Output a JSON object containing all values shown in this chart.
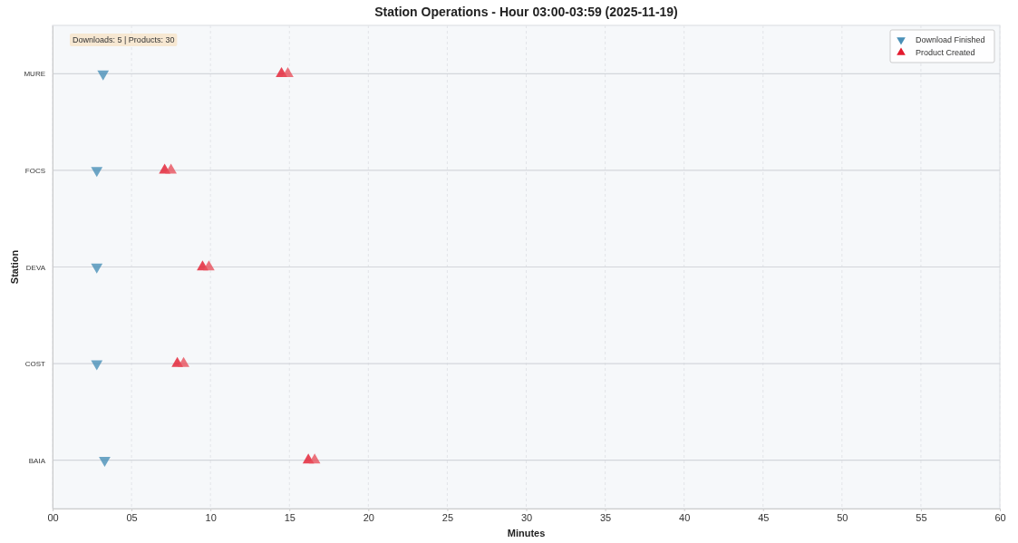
{
  "chart_data": {
    "type": "scatter",
    "orientation": "horizontal",
    "title": "Station Operations - Hour 03:00-03:59 (2025-11-19)",
    "xlabel": "Minutes",
    "ylabel": "Station",
    "categories": [
      "MURE",
      "FOCS",
      "DEVA",
      "COST",
      "BAIA"
    ],
    "series": [
      {
        "name": "Download Finished",
        "color": "#4a90b8",
        "marker": "triangle_down",
        "values": [
          3.2,
          2.8,
          2.8,
          2.8,
          3.3
        ]
      },
      {
        "name": "Product Created",
        "color": "#e31a2e",
        "marker": "triangle",
        "values": [
          14.5,
          7.1,
          9.5,
          7.9,
          16.2
        ]
      },
      {
        "color": "#e8505c",
        "marker": "triangle",
        "values": [
          14.9,
          7.5,
          9.9,
          8.3,
          16.6
        ]
      }
    ],
    "xlim": [
      0,
      60
    ],
    "xticks": [
      {
        "value": 0,
        "label": "00"
      },
      {
        "value": 5,
        "label": "05"
      },
      10,
      15,
      20,
      25,
      30,
      35,
      40,
      45,
      50,
      55,
      60
    ],
    "grid": true,
    "legend": "top right",
    "annotations": [
      "Downloads: 5 | Products: 30"
    ]
  }
}
